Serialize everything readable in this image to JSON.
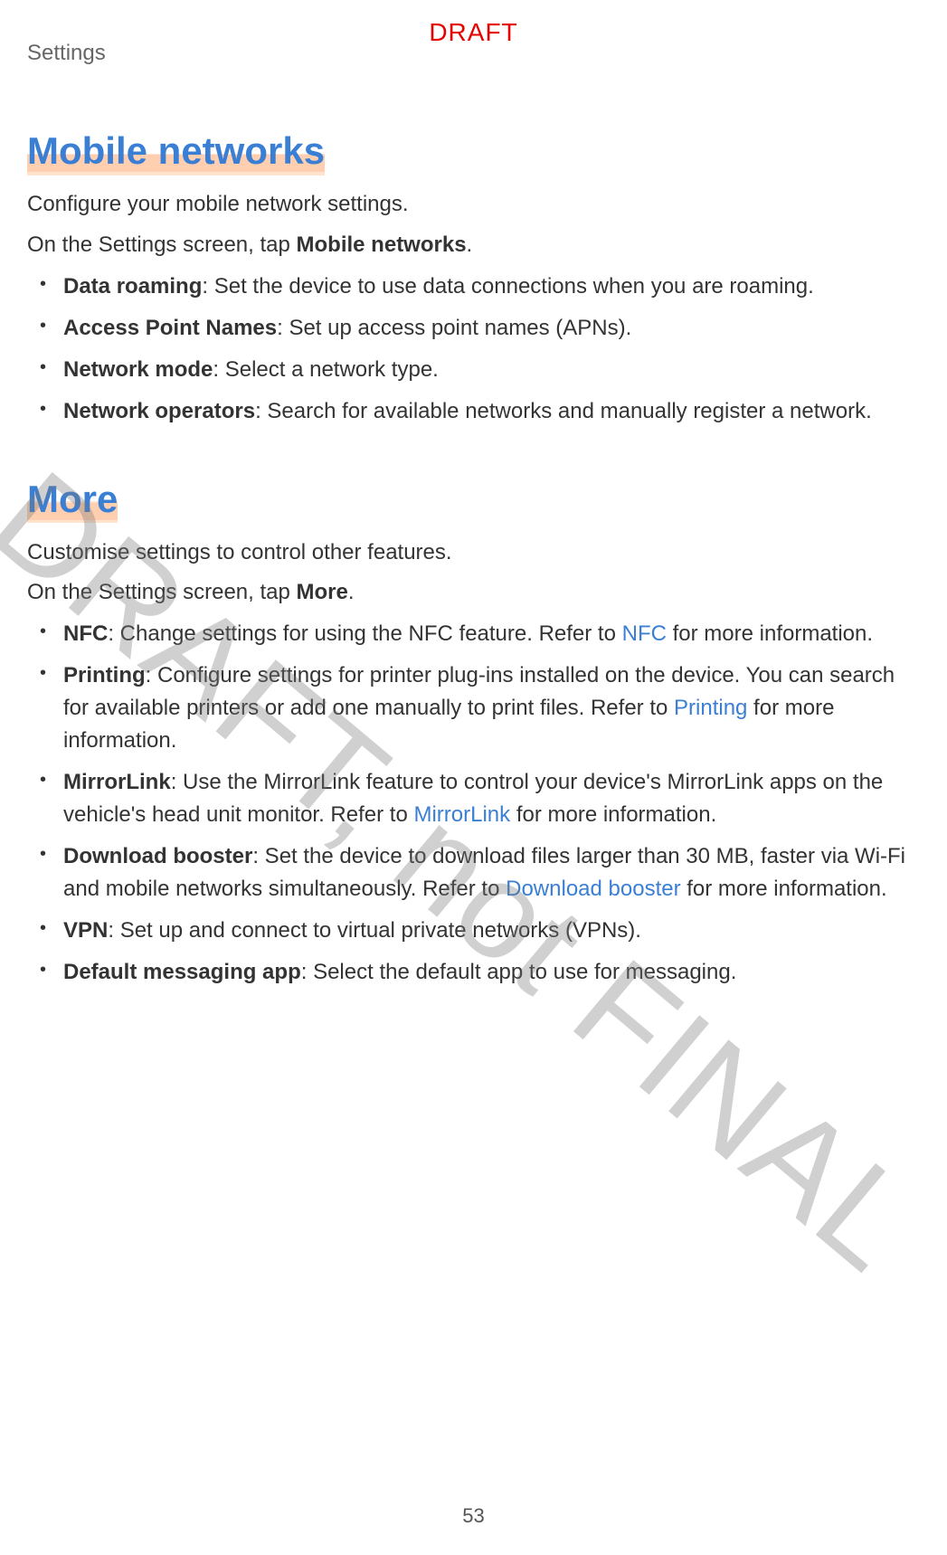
{
  "header": {
    "label": "Settings"
  },
  "draft_label": "DRAFT",
  "watermark": "DRAFT, not FINAL",
  "page_number": "53",
  "colors": {
    "heading": "#3a7fd4",
    "link": "#3a7fd4",
    "draft": "#e60000",
    "body_text": "#333333",
    "header_text": "#666666",
    "watermark": "rgba(120,120,120,0.35)",
    "highlight": "rgba(255,190,150,0.55)",
    "background": "#ffffff"
  },
  "typography": {
    "heading_fontsize_pt": 32,
    "body_fontsize_pt": 18,
    "draft_fontsize_pt": 21,
    "watermark_fontsize_pt": 112,
    "font_family": "Segoe UI / Arial"
  },
  "sections": [
    {
      "title": "Mobile networks",
      "intro": [
        "Configure your mobile network settings.",
        "On the Settings screen, tap |Mobile networks|."
      ],
      "items": [
        {
          "term": "Data roaming",
          "desc": ": Set the device to use data connections when you are roaming."
        },
        {
          "term": "Access Point Names",
          "desc": ": Set up access point names (APNs)."
        },
        {
          "term": "Network mode",
          "desc": ": Select a network type."
        },
        {
          "term": "Network operators",
          "desc": ": Search for available networks and manually register a network."
        }
      ]
    },
    {
      "title": "More",
      "intro": [
        "Customise settings to control other features.",
        "On the Settings screen, tap |More|."
      ],
      "items": [
        {
          "term": "NFC",
          "desc": ": Change settings for using the NFC feature. Refer to ~NFC~ for more information."
        },
        {
          "term": "Printing",
          "desc": ": Configure settings for printer plug-ins installed on the device. You can search for available printers or add one manually to print files. Refer to ~Printing~ for more information."
        },
        {
          "term": "MirrorLink",
          "desc": ": Use the MirrorLink feature to control your device's MirrorLink apps on the vehicle's head unit monitor. Refer to ~MirrorLink~ for more information."
        },
        {
          "term": "Download booster",
          "desc": ": Set the device to download files larger than 30 MB, faster via Wi-Fi and mobile networks simultaneously. Refer to ~Download booster~ for more information."
        },
        {
          "term": "VPN",
          "desc": ": Set up and connect to virtual private networks (VPNs)."
        },
        {
          "term": "Default messaging app",
          "desc": ": Select the default app to use for messaging."
        }
      ]
    }
  ]
}
